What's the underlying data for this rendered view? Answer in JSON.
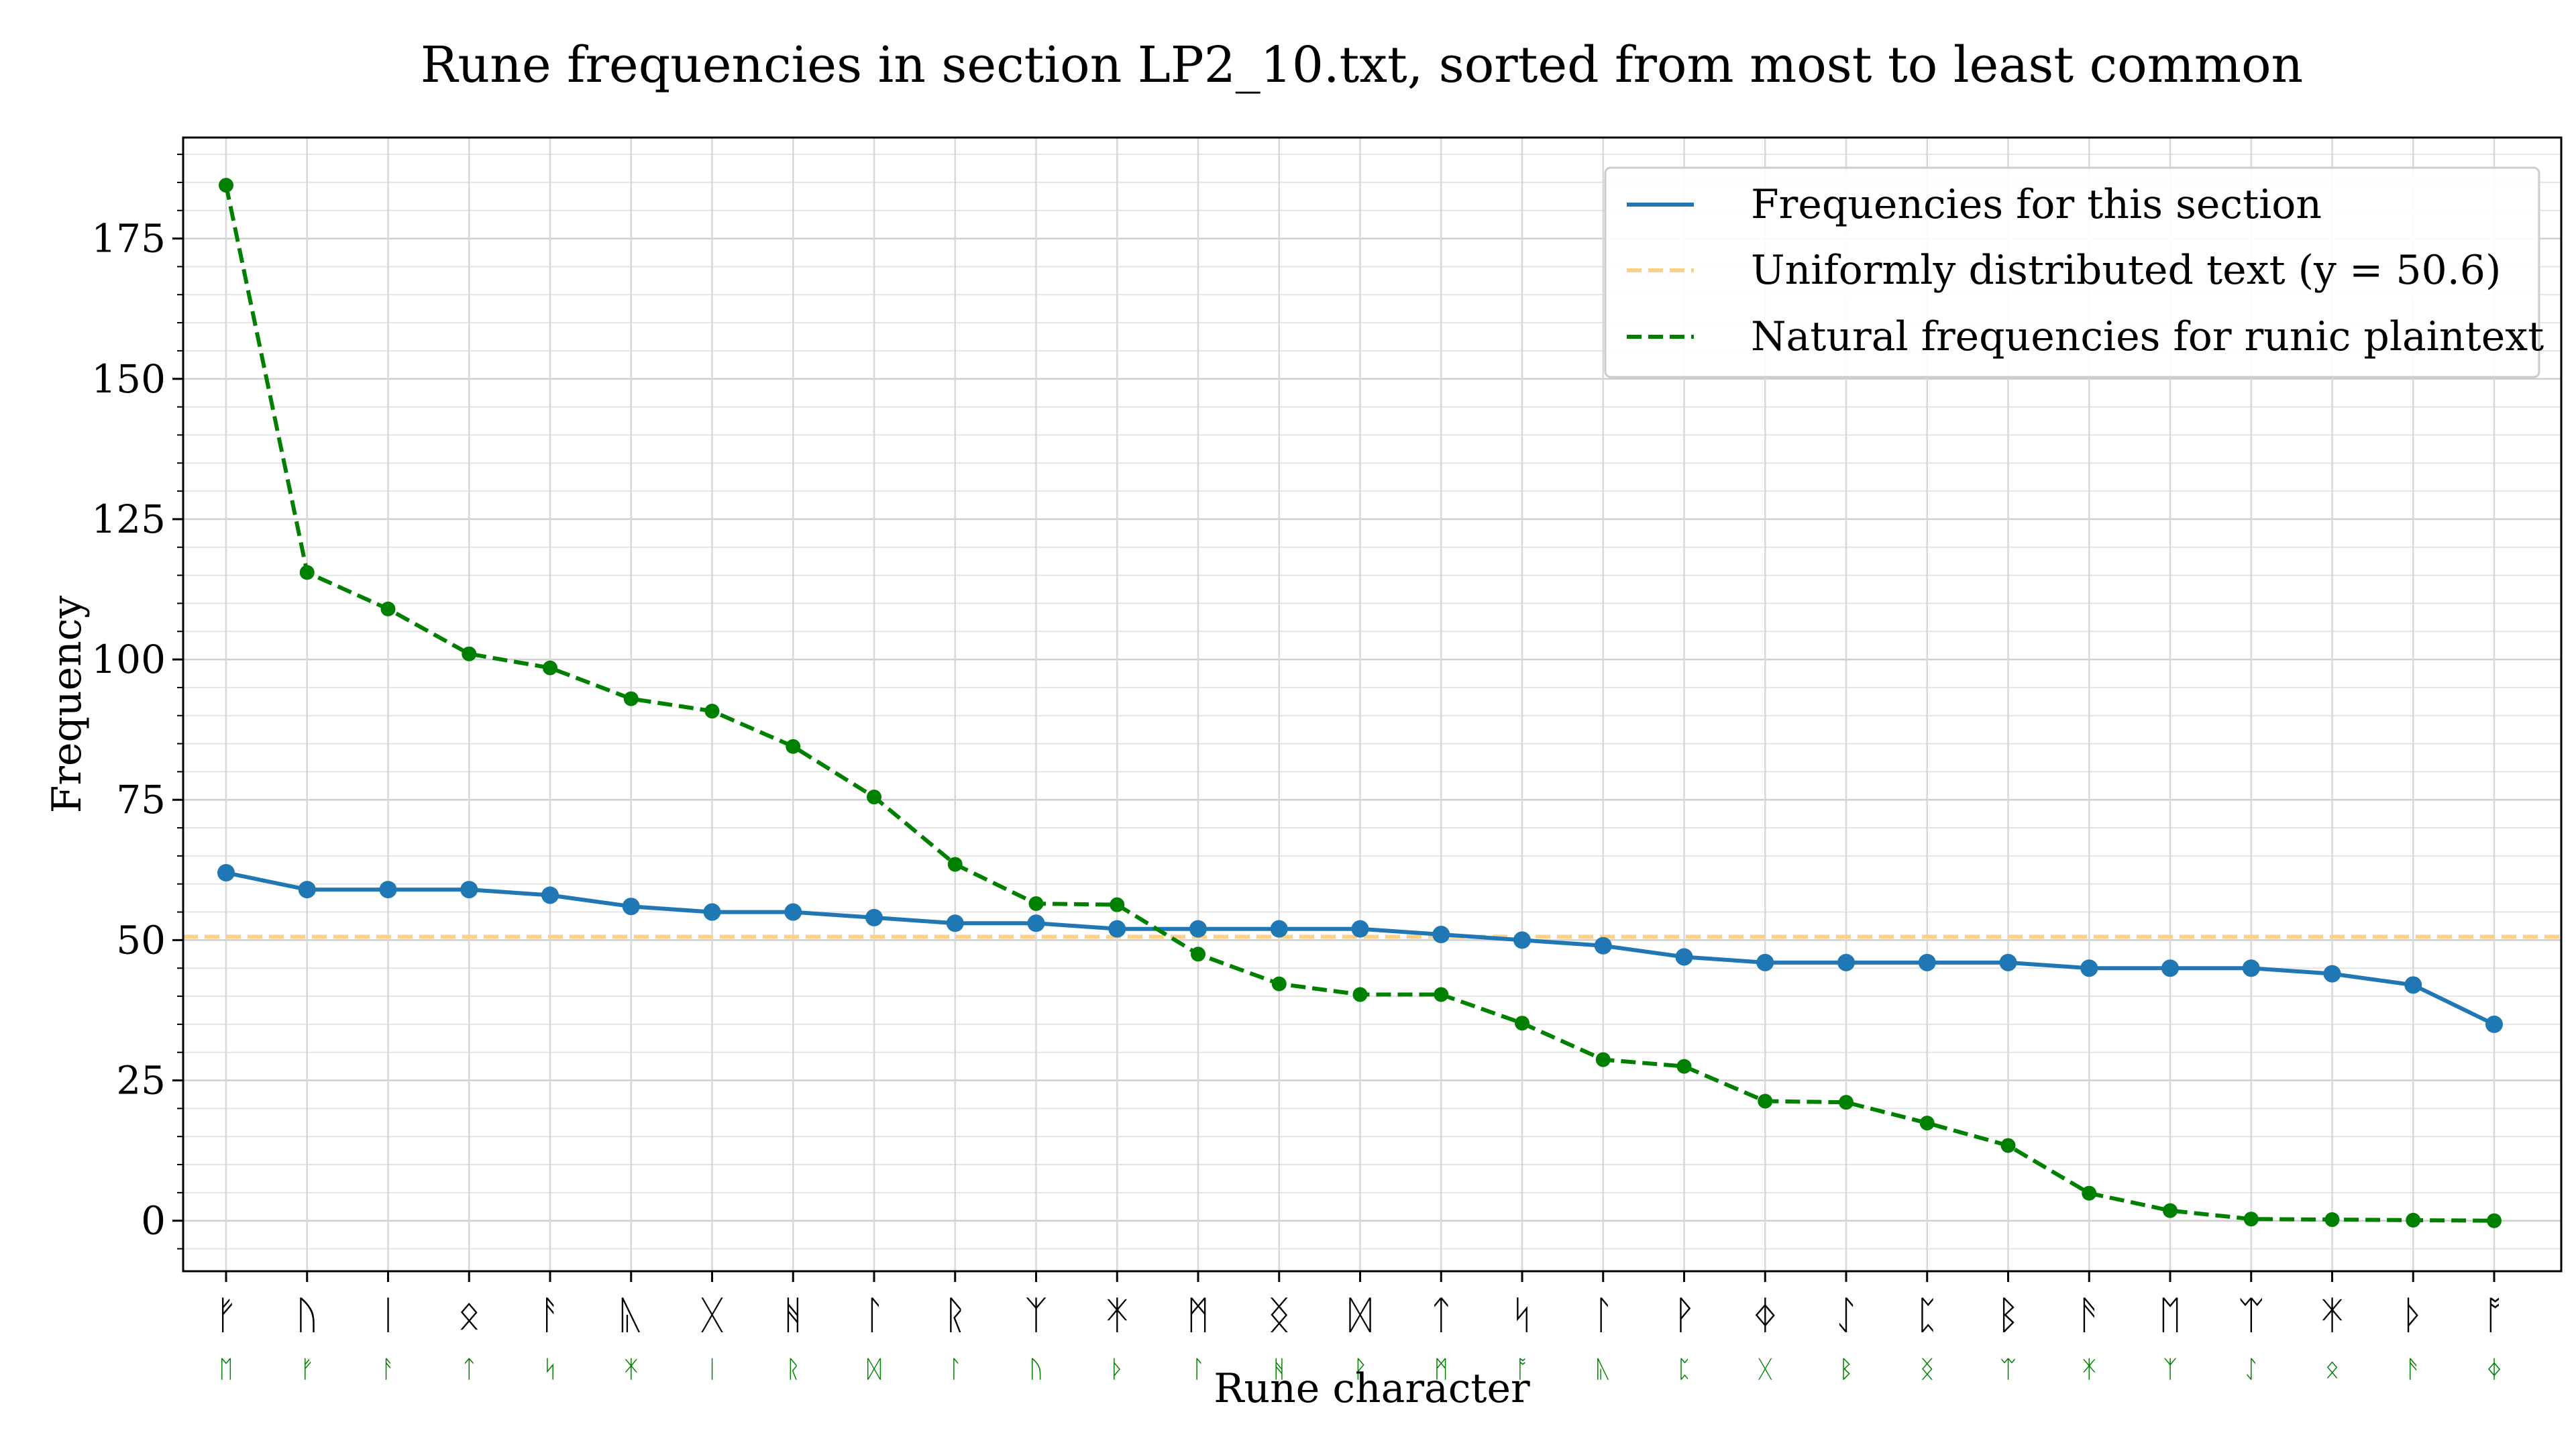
{
  "chart_data": {
    "type": "line",
    "title": "Rune frequencies in section LP2_10.txt, sorted from most to least common",
    "xlabel": "Rune character",
    "ylabel": "Frequency",
    "ylim": [
      -9,
      193
    ],
    "yticks": [
      0,
      25,
      50,
      75,
      100,
      125,
      150,
      175
    ],
    "grid": true,
    "legend_position": "top-right",
    "categories": [
      "ᚠ",
      "ᚢ",
      "ᛁ",
      "ᛟ",
      "ᚨ",
      "ᚣ",
      "ᚷ",
      "ᚻ",
      "ᛚ",
      "ᚱ",
      "ᛉ",
      "ᛡ",
      "ᛗ",
      "ᛝ",
      "ᛞ",
      "ᛏ",
      "ᛋ",
      "ᛚ",
      "ᚹ",
      "ᛄ",
      "ᛇ",
      "ᛈ",
      "ᛒ",
      "ᚫ",
      "ᛖ",
      "ᛠ",
      "ᛡ",
      "ᚦ",
      "ᚩ"
    ],
    "secondary_categories": [
      "ᛖ",
      "ᚠ",
      "ᚨ",
      "ᛏ",
      "ᛋ",
      "ᛡ",
      "ᛁ",
      "ᚱ",
      "ᛞ",
      "ᛚ",
      "ᚢ",
      "ᚦ",
      "ᛚ",
      "ᚻ",
      "ᚹ",
      "ᛗ",
      "ᚩ",
      "ᚣ",
      "ᛈ",
      "ᚷ",
      "ᛒ",
      "ᛝ",
      "ᛠ",
      "ᛡ",
      "ᛉ",
      "ᛇ",
      "ᛟ",
      "ᚫ",
      "ᛄ"
    ],
    "series": [
      {
        "name": "Frequencies for this section",
        "color": "#1f77b4",
        "style": "solid",
        "values": [
          62,
          59,
          59,
          59,
          58,
          56,
          55,
          55,
          54,
          53,
          53,
          52,
          52,
          52,
          52,
          51,
          50,
          49,
          47,
          46,
          46,
          46,
          46,
          45,
          45,
          45,
          44,
          42,
          35
        ]
      },
      {
        "name": "Natural frequencies for runic plaintext",
        "color": "#008000",
        "style": "dashed",
        "values": [
          184.5,
          115.5,
          109,
          101,
          98.5,
          93,
          90.8,
          84.5,
          75.5,
          63.5,
          56.5,
          56.3,
          47.5,
          42.2,
          40.3,
          40.3,
          35.2,
          28.7,
          27.5,
          21.3,
          21.1,
          17.4,
          13.4,
          4.9,
          1.8,
          0.3,
          0.2,
          0.1,
          0
        ]
      }
    ],
    "reference_line": {
      "name": "Uniformly distributed text (y = 50.6)",
      "color": "#fdd089",
      "style": "dashed",
      "value": 50.6
    }
  }
}
